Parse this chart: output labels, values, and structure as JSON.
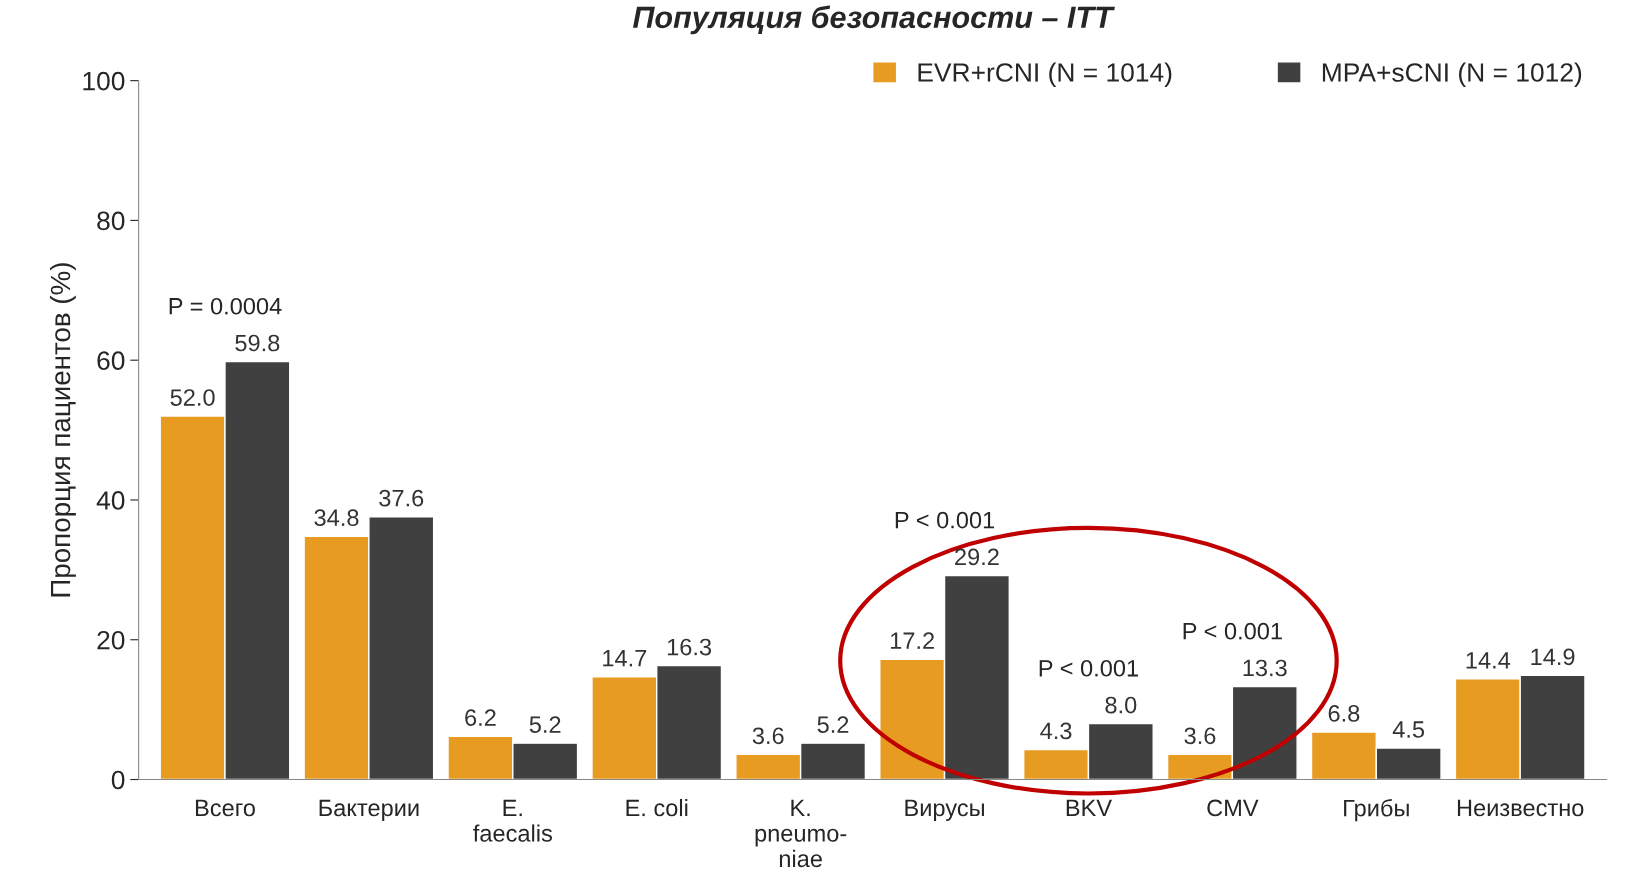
{
  "chart_data": {
    "type": "bar",
    "title": "Популяция безопасности – ITT",
    "ylabel": "Пропорция пациентов (%)",
    "categories": [
      "Всего",
      "Бактерии",
      "E.\nfaecalis",
      "E. coli",
      "K.\npneumo-\nniae",
      "Вирусы",
      "BKV",
      "CMV",
      "Грибы",
      "Неизвестно"
    ],
    "series": [
      {
        "name": "EVR+rCNI (N = 1014)",
        "color": "#e89b21",
        "values": [
          52.0,
          34.8,
          6.2,
          14.7,
          3.6,
          17.2,
          4.3,
          3.6,
          6.8,
          14.4
        ],
        "value_labels": [
          "52.0",
          "34.8",
          "6.2",
          "14.7",
          "3.6",
          "17.2",
          "4.3",
          "3.6",
          "6.8",
          "14.4"
        ]
      },
      {
        "name": "MPA+sCNI (N = 1012)",
        "color": "#404040",
        "values": [
          59.8,
          37.6,
          5.2,
          16.3,
          5.2,
          29.2,
          8.0,
          13.3,
          4.5,
          14.9
        ],
        "value_labels": [
          "59.8",
          "37.6",
          "5.2",
          "16.3",
          "5.2",
          "29.2",
          "8.0",
          "13.3",
          "4.5",
          "14.9"
        ]
      }
    ],
    "ylim": [
      0,
      100
    ],
    "yticks": [
      0,
      20,
      40,
      60,
      80,
      100
    ],
    "grid": false,
    "legend": "top right",
    "annotations": [
      {
        "text": "P = 0.0004",
        "x": "Всего",
        "y": 59.8
      },
      {
        "text": "P < 0.001",
        "x": "Вирусы",
        "y": 29.2
      },
      {
        "text": "P < 0.001",
        "x": "BKV",
        "y": 8.0
      },
      {
        "text": "P < 0.001",
        "x": "CMV",
        "y": 13.3
      }
    ]
  }
}
